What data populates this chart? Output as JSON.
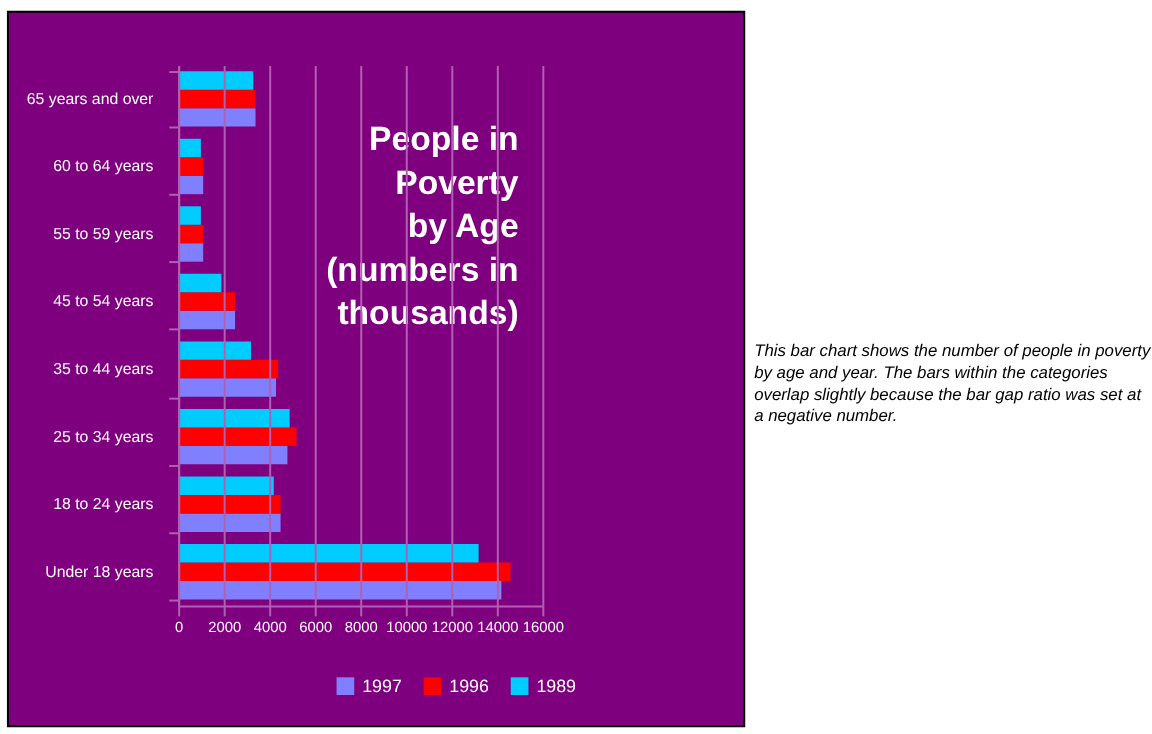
{
  "chart_data": {
    "type": "bar",
    "orientation": "horizontal",
    "title": "People in\nPoverty\nby Age\n(numbers in\nthousands)",
    "categories": [
      "65 years and over",
      "60 to 64 years",
      "55 to 59 years",
      "45 to 54 years",
      "35 to 44 years",
      "25 to 34 years",
      "18 to 24 years",
      "Under 18 years"
    ],
    "series": [
      {
        "name": "1997",
        "color": "#8080ff",
        "values": [
          3400,
          1100,
          1100,
          2500,
          4300,
          4800,
          4500,
          14200
        ]
      },
      {
        "name": "1996",
        "color": "#ff0000",
        "values": [
          3400,
          1100,
          1100,
          2500,
          4400,
          5200,
          4500,
          14600
        ]
      },
      {
        "name": "1989",
        "color": "#00ccff",
        "values": [
          3300,
          1000,
          1000,
          1900,
          3200,
          4900,
          4200,
          13200
        ]
      }
    ],
    "xlim": [
      0,
      16000
    ],
    "xticks": [
      0,
      2000,
      4000,
      6000,
      8000,
      10000,
      12000,
      14000,
      16000
    ],
    "grid": "x",
    "legend": "bottom",
    "annotations": [
      "This bar chart shows the number of people in poverty by age and year. The bars within the categories overlap slightly because the bar gap ratio was set at a negative number."
    ]
  }
}
